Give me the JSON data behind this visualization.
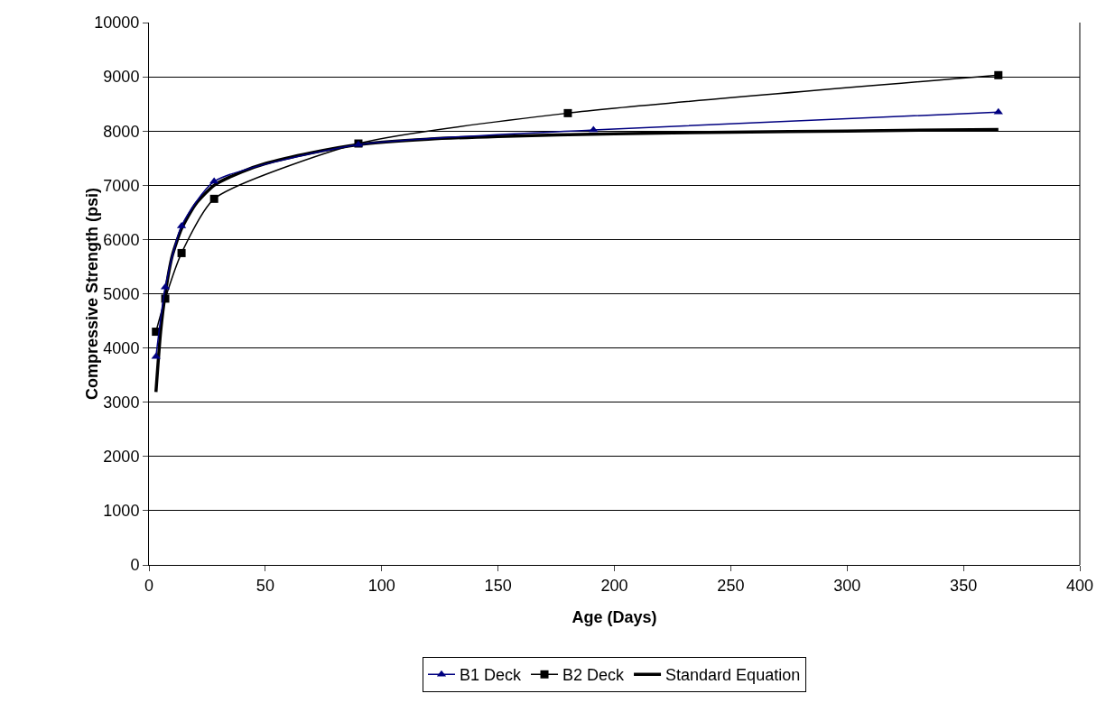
{
  "chart_data": {
    "type": "line",
    "xlabel": "Age (Days)",
    "ylabel": "Compressive Strength (psi)",
    "xlim": [
      0,
      400
    ],
    "xticks": [
      0,
      50,
      100,
      150,
      200,
      250,
      300,
      350,
      400
    ],
    "ylim": [
      0,
      10000
    ],
    "yticks": [
      0,
      1000,
      2000,
      3000,
      4000,
      5000,
      6000,
      7000,
      8000,
      9000,
      10000
    ],
    "grid": "y",
    "legend": "bottom",
    "series": [
      {
        "name": "B1 Deck",
        "color": "#000080",
        "marker": "triangle",
        "x": [
          3,
          7,
          14,
          28,
          90,
          191,
          365
        ],
        "values": [
          3840,
          5120,
          6250,
          7070,
          7750,
          8020,
          8350
        ]
      },
      {
        "name": "B2 Deck",
        "color": "#000000",
        "marker": "square",
        "x": [
          3,
          7,
          14,
          28,
          90,
          180,
          365
        ],
        "values": [
          4300,
          4910,
          5750,
          6750,
          7770,
          8330,
          9030
        ]
      },
      {
        "name": "Standard Equation",
        "color": "#000000",
        "marker": "none",
        "x": [
          3,
          5,
          7,
          10,
          14,
          20,
          28,
          40,
          50,
          70,
          90,
          120,
          150,
          200,
          250,
          300,
          365
        ],
        "values": [
          3190,
          4300,
          5000,
          5700,
          6200,
          6650,
          7000,
          7250,
          7400,
          7600,
          7750,
          7850,
          7900,
          7950,
          7980,
          8000,
          8030
        ]
      }
    ]
  }
}
